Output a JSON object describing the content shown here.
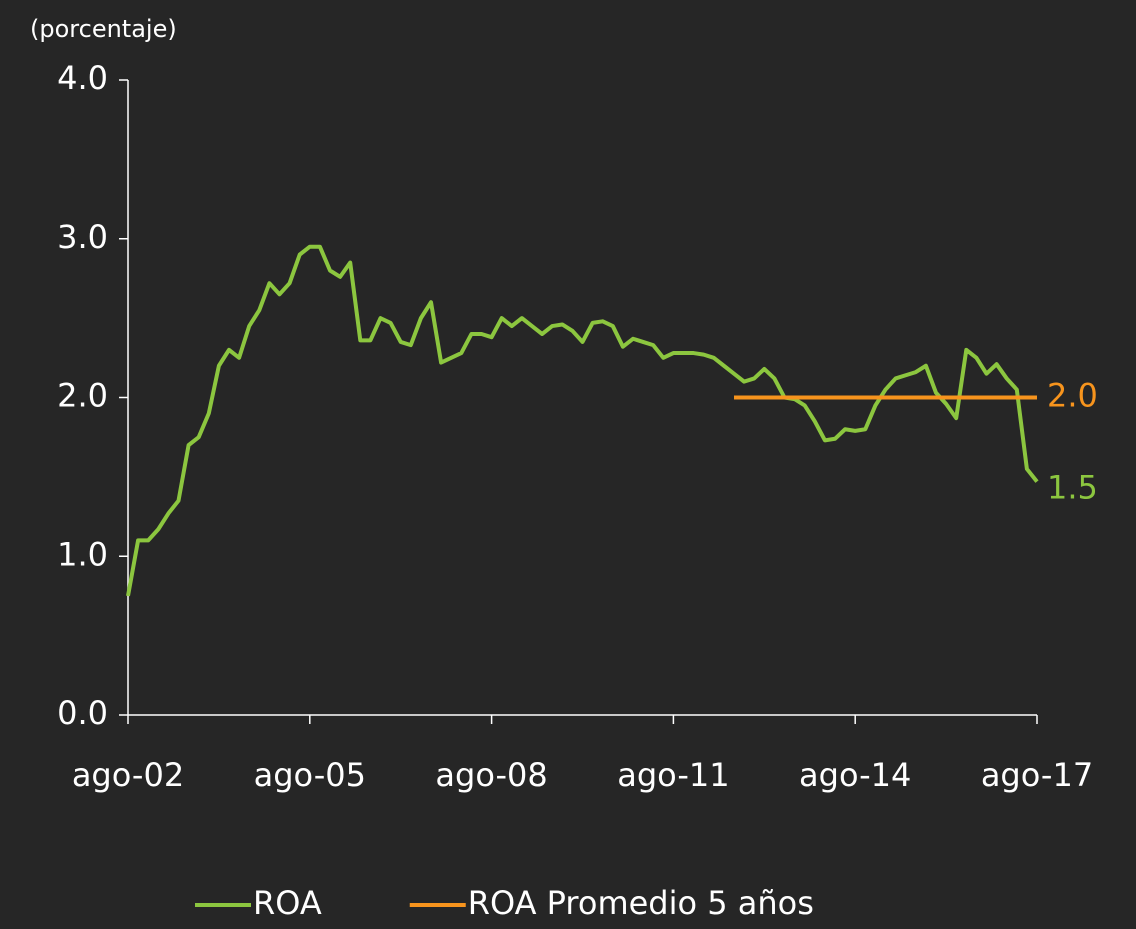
{
  "chart_data": {
    "type": "line",
    "y_label": "(porcentaje)",
    "categories": [
      "ago-02",
      null,
      null,
      null,
      null,
      null,
      null,
      null,
      null,
      null,
      null,
      null,
      null,
      null,
      null,
      null,
      null,
      null,
      "ago-05",
      null,
      null,
      null,
      null,
      null,
      null,
      null,
      null,
      null,
      null,
      null,
      null,
      null,
      null,
      null,
      null,
      null,
      "ago-08",
      null,
      null,
      null,
      null,
      null,
      null,
      null,
      null,
      null,
      null,
      null,
      null,
      null,
      null,
      null,
      null,
      null,
      "ago-11",
      null,
      null,
      null,
      null,
      null,
      null,
      null,
      null,
      null,
      null,
      null,
      null,
      null,
      null,
      null,
      null,
      null,
      "ago-14",
      null,
      null,
      null,
      null,
      null,
      null,
      null,
      null,
      null,
      null,
      null,
      null,
      null,
      null,
      null,
      null,
      null,
      "ago-17"
    ],
    "series": [
      {
        "name": "ROA",
        "color": "#8cc63f",
        "values": [
          0.75,
          1.1,
          1.1,
          1.17,
          1.27,
          1.35,
          1.7,
          1.75,
          1.9,
          2.2,
          2.3,
          2.25,
          2.45,
          2.55,
          2.72,
          2.65,
          2.72,
          2.9,
          2.95,
          2.95,
          2.8,
          2.76,
          2.85,
          2.36,
          2.36,
          2.5,
          2.47,
          2.35,
          2.33,
          2.5,
          2.6,
          2.22,
          2.25,
          2.28,
          2.4,
          2.4,
          2.38,
          2.5,
          2.45,
          2.5,
          2.45,
          2.4,
          2.45,
          2.46,
          2.42,
          2.35,
          2.47,
          2.48,
          2.45,
          2.32,
          2.37,
          2.35,
          2.33,
          2.25,
          2.28,
          2.28,
          2.28,
          2.27,
          2.25,
          2.2,
          2.15,
          2.1,
          2.12,
          2.18,
          2.12,
          2.0,
          1.99,
          1.95,
          1.85,
          1.73,
          1.74,
          1.8,
          1.79,
          1.8,
          1.95,
          2.05,
          2.12,
          2.14,
          2.16,
          2.2,
          2.03,
          1.96,
          1.87,
          2.3,
          2.25,
          2.15,
          2.21,
          2.12,
          2.05,
          1.55,
          1.47
        ],
        "value_labels": [
          null,
          null,
          null,
          null,
          null,
          null,
          null,
          null,
          null,
          null,
          null,
          null,
          null,
          null,
          null,
          null,
          null,
          null,
          null,
          null,
          null,
          null,
          null,
          null,
          null,
          null,
          null,
          null,
          null,
          null,
          null,
          null,
          null,
          null,
          null,
          null,
          null,
          null,
          null,
          null,
          null,
          null,
          null,
          null,
          null,
          null,
          null,
          null,
          null,
          null,
          null,
          null,
          null,
          null,
          null,
          null,
          null,
          null,
          null,
          null,
          null,
          null,
          null,
          null,
          null,
          null,
          null,
          null,
          null,
          null,
          null,
          null,
          null,
          null,
          null,
          null,
          null,
          null,
          null,
          null,
          null,
          null,
          null,
          null,
          null,
          null,
          null,
          null,
          null,
          null,
          "1.5"
        ]
      },
      {
        "name": "ROA Promedio 5 años",
        "color": "#f7941d",
        "values": [
          null,
          null,
          null,
          null,
          null,
          null,
          null,
          null,
          null,
          null,
          null,
          null,
          null,
          null,
          null,
          null,
          null,
          null,
          null,
          null,
          null,
          null,
          null,
          null,
          null,
          null,
          null,
          null,
          null,
          null,
          null,
          null,
          null,
          null,
          null,
          null,
          null,
          null,
          null,
          null,
          null,
          null,
          null,
          null,
          null,
          null,
          null,
          null,
          null,
          null,
          null,
          null,
          null,
          null,
          null,
          null,
          null,
          null,
          null,
          null,
          2,
          2,
          2,
          2,
          2,
          2,
          2,
          2,
          2,
          2,
          2,
          2,
          2,
          2,
          2,
          2,
          2,
          2,
          2,
          2,
          2,
          2,
          2,
          2,
          2,
          2,
          2,
          2,
          2,
          2,
          2
        ],
        "value_labels": [
          null,
          null,
          null,
          null,
          null,
          null,
          null,
          null,
          null,
          null,
          null,
          null,
          null,
          null,
          null,
          null,
          null,
          null,
          null,
          null,
          null,
          null,
          null,
          null,
          null,
          null,
          null,
          null,
          null,
          null,
          null,
          null,
          null,
          null,
          null,
          null,
          null,
          null,
          null,
          null,
          null,
          null,
          null,
          null,
          null,
          null,
          null,
          null,
          null,
          null,
          null,
          null,
          null,
          null,
          null,
          null,
          null,
          null,
          null,
          null,
          null,
          null,
          null,
          null,
          null,
          null,
          null,
          null,
          null,
          null,
          null,
          null,
          null,
          null,
          null,
          null,
          null,
          null,
          null,
          null,
          null,
          null,
          null,
          null,
          null,
          null,
          null,
          null,
          null,
          null,
          "2.0"
        ]
      }
    ],
    "ylim": [
      0,
      4
    ],
    "yticks": [
      {
        "value": 0,
        "label": "0.0"
      },
      {
        "value": 1,
        "label": "1.0"
      },
      {
        "value": 2,
        "label": "2.0"
      },
      {
        "value": 3,
        "label": "3.0"
      },
      {
        "value": 4,
        "label": "4.0"
      }
    ],
    "legend": "bottom",
    "grid": false
  }
}
